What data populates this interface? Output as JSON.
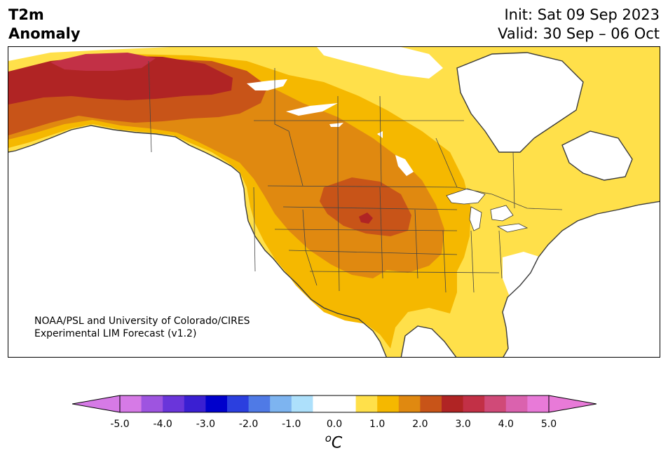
{
  "title": {
    "left_line1": "T2m",
    "left_line2": "Anomaly",
    "init": "Init: Sat 09 Sep 2023",
    "valid": "Valid: 30 Sep – 06 Oct"
  },
  "credit": {
    "line1": "NOAA/PSL and University of Colorado/CIRES",
    "line2": "Experimental LIM Forecast (v1.2)"
  },
  "colorbar": {
    "unit_base": "C",
    "unit_sup": "o",
    "ticks": [
      "-5.0",
      "-4.0",
      "-3.0",
      "-2.0",
      "-1.0",
      "0.0",
      "1.0",
      "2.0",
      "3.0",
      "4.0",
      "5.0"
    ],
    "under_color": "#d67ae6",
    "over_color": "#e87ad8",
    "colors": [
      "#d67ae6",
      "#9e54e0",
      "#6a35da",
      "#3a1fd2",
      "#0000cc",
      "#2b3fdf",
      "#4f7ae6",
      "#7db4f0",
      "#ade0fb",
      "#ffffff",
      "#ffffff",
      "#ffe04a",
      "#f5b800",
      "#e08910",
      "#c85418",
      "#b02424",
      "#c23046",
      "#d04a78",
      "#da62ae",
      "#e87ad8"
    ]
  },
  "map": {
    "region": "North America",
    "anomaly_fields": [
      {
        "area": "Alaska north coast",
        "level": "3.0 to 3.5",
        "color": "#b02424"
      },
      {
        "area": "Northern Alaska",
        "level": "3.5 to 4.0",
        "color": "#c23046"
      },
      {
        "area": "Yukon / NW Canada",
        "level": "2.5 to 3.0",
        "color": "#c85418"
      },
      {
        "area": "Northern Plains / Dakotas",
        "level": "2.5 to 3.0",
        "color": "#c85418"
      },
      {
        "area": "Central Plains",
        "level": "2.0 to 2.5",
        "color": "#e08910"
      },
      {
        "area": "Western and Central US",
        "level": "1.0 to 1.5",
        "color": "#f5b800"
      },
      {
        "area": "Eastern US / Canada",
        "level": "0.5 to 1.0",
        "color": "#ffe04a"
      },
      {
        "area": "Hudson Bay / Quebec / Southeast coast",
        "level": "-0.5 to 0.5",
        "color": "#ffffff"
      }
    ]
  }
}
